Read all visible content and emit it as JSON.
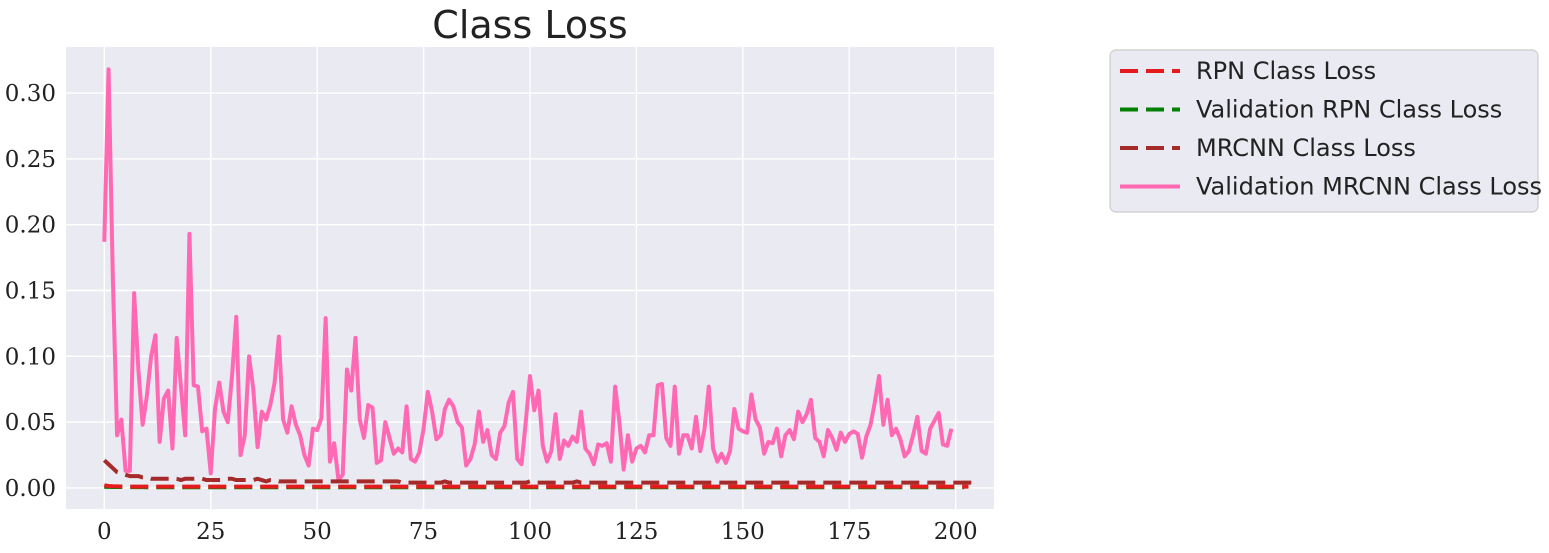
{
  "chart_data": {
    "type": "line",
    "title": "Class Loss",
    "xlabel": "",
    "ylabel": "",
    "xlim": [
      -9,
      209
    ],
    "ylim": [
      -0.016,
      0.335
    ],
    "xticks": [
      0,
      25,
      50,
      75,
      100,
      125,
      150,
      175,
      200
    ],
    "yticks": [
      0.0,
      0.05,
      0.1,
      0.15,
      0.2,
      0.25,
      0.3
    ],
    "ytick_labels": [
      "0.00",
      "0.05",
      "0.10",
      "0.15",
      "0.20",
      "0.25",
      "0.30"
    ],
    "grid": true,
    "legend_position": "outside right, top",
    "background_color": "#eaeaf2",
    "series": [
      {
        "name": "RPN Class Loss",
        "color": "#e41a1c",
        "style": "dashed",
        "x_start": 0,
        "x_step": 1,
        "values": [
          0.002,
          0.0015,
          0.0013,
          0.0012,
          0.0011,
          0.0011,
          0.001,
          0.001,
          0.001,
          0.001,
          0.001,
          0.001,
          0.001,
          0.001,
          0.001,
          0.001,
          0.001,
          0.001,
          0.001,
          0.001,
          0.001,
          0.001,
          0.001,
          0.001,
          0.001,
          0.001,
          0.001,
          0.001,
          0.001,
          0.001,
          0.001,
          0.001,
          0.001,
          0.001,
          0.001,
          0.001,
          0.001,
          0.001,
          0.001,
          0.001,
          0.001,
          0.001,
          0.001,
          0.001,
          0.001,
          0.001,
          0.001,
          0.001,
          0.001,
          0.001,
          0.001,
          0.001,
          0.001,
          0.001,
          0.001,
          0.001,
          0.001,
          0.001,
          0.001,
          0.001,
          0.001,
          0.001,
          0.001,
          0.001,
          0.001,
          0.001,
          0.001,
          0.001,
          0.001,
          0.001,
          0.001,
          0.001,
          0.001,
          0.001,
          0.001,
          0.001,
          0.001,
          0.001,
          0.001,
          0.001,
          0.001,
          0.001,
          0.001,
          0.001,
          0.001,
          0.001,
          0.001,
          0.001,
          0.001,
          0.001,
          0.001,
          0.001,
          0.001,
          0.001,
          0.001,
          0.001,
          0.001,
          0.001,
          0.001,
          0.001,
          0.001,
          0.001,
          0.001,
          0.001,
          0.001,
          0.001,
          0.001,
          0.001,
          0.001,
          0.001,
          0.001,
          0.001,
          0.001,
          0.001,
          0.001,
          0.001,
          0.001,
          0.001,
          0.001,
          0.001,
          0.001,
          0.001,
          0.001,
          0.001,
          0.001,
          0.001,
          0.001,
          0.001,
          0.001,
          0.001,
          0.001,
          0.001,
          0.001,
          0.001,
          0.001,
          0.001,
          0.001,
          0.001,
          0.001,
          0.001,
          0.001,
          0.001,
          0.001,
          0.001,
          0.001,
          0.001,
          0.001,
          0.001,
          0.001,
          0.001,
          0.001,
          0.001,
          0.001,
          0.001,
          0.001,
          0.001,
          0.001,
          0.001,
          0.001,
          0.001,
          0.001,
          0.001,
          0.001,
          0.001,
          0.001,
          0.001,
          0.001,
          0.001,
          0.001,
          0.001,
          0.001,
          0.001,
          0.001,
          0.001,
          0.001,
          0.001,
          0.001,
          0.001,
          0.001,
          0.001,
          0.001,
          0.001,
          0.001,
          0.001,
          0.001,
          0.001,
          0.001,
          0.001,
          0.001,
          0.001,
          0.001,
          0.001,
          0.001,
          0.001,
          0.001,
          0.001,
          0.001,
          0.001,
          0.001,
          0.001,
          0.001,
          0.001,
          0.001,
          0.001
        ]
      },
      {
        "name": "Validation RPN Class Loss",
        "color": "#008000",
        "style": "dashed",
        "x_start": 0,
        "x_step": 1,
        "values": [
          0.0008,
          0.0008,
          0.0007,
          0.0007,
          0.0007,
          0.0006,
          0.0006,
          0.0006,
          0.0006,
          0.0006,
          0.0005,
          0.0005,
          0.0005,
          0.0005,
          0.0005,
          0.0005,
          0.0005,
          0.0005,
          0.0005,
          0.0005,
          0.0005,
          0.0005,
          0.0005,
          0.0005,
          0.0005,
          0.0005,
          0.0005,
          0.0005,
          0.0005,
          0.0005,
          0.0005,
          0.0005,
          0.0005,
          0.0005,
          0.0005,
          0.0005,
          0.0005,
          0.0005,
          0.0005,
          0.0005,
          0.0005,
          0.0005,
          0.0005,
          0.0005,
          0.0005,
          0.0005,
          0.0005,
          0.0005,
          0.0005,
          0.0005,
          0.0005,
          0.0005,
          0.0005,
          0.0005,
          0.0005,
          0.0005,
          0.0005,
          0.0005,
          0.0005,
          0.0005,
          0.0005,
          0.0005,
          0.0005,
          0.0005,
          0.0005,
          0.0005,
          0.0005,
          0.0005,
          0.0005,
          0.0005,
          0.0005,
          0.0005,
          0.0005,
          0.0005,
          0.0005,
          0.0005,
          0.0005,
          0.0005,
          0.0005,
          0.0005,
          0.0005,
          0.0005,
          0.0005,
          0.0005,
          0.0005,
          0.0005,
          0.0005,
          0.0005,
          0.0005,
          0.0005,
          0.0005,
          0.0005,
          0.0005,
          0.0005,
          0.0005,
          0.0005,
          0.0005,
          0.0005,
          0.0005,
          0.0005,
          0.0005,
          0.0005,
          0.0005,
          0.0005,
          0.0005,
          0.0005,
          0.0005,
          0.0005,
          0.0005,
          0.0005,
          0.0005,
          0.0005,
          0.0005,
          0.0005,
          0.0005,
          0.0005,
          0.0005,
          0.0005,
          0.0005,
          0.0005,
          0.0005,
          0.0005,
          0.0005,
          0.0005,
          0.0005,
          0.0005,
          0.0005,
          0.0005,
          0.0005,
          0.0005,
          0.0005,
          0.0005,
          0.0005,
          0.0005,
          0.0005,
          0.0005,
          0.0005,
          0.0005,
          0.0005,
          0.0005,
          0.0005,
          0.0005,
          0.0005,
          0.0005,
          0.0005,
          0.0005,
          0.0005,
          0.0005,
          0.0005,
          0.0005,
          0.0005,
          0.0005,
          0.0005,
          0.0005,
          0.0005,
          0.0005,
          0.0005,
          0.0005,
          0.0005,
          0.0005,
          0.0005,
          0.0005,
          0.0005,
          0.0005,
          0.0005,
          0.0005,
          0.0005,
          0.0005,
          0.0005,
          0.0005,
          0.0005,
          0.0005,
          0.0005,
          0.0005,
          0.0005,
          0.0005,
          0.0005,
          0.0005,
          0.0005,
          0.0005,
          0.0005,
          0.0005,
          0.0005,
          0.0005,
          0.0005,
          0.0005,
          0.0005,
          0.0005,
          0.0005,
          0.0005,
          0.0005,
          0.0005,
          0.0005,
          0.0005,
          0.0005,
          0.0005,
          0.0005,
          0.0005,
          0.0005,
          0.0005,
          0.0005,
          0.0005,
          0.0005
        ]
      },
      {
        "name": "MRCNN Class Loss",
        "color": "#a52a2a",
        "style": "dashed",
        "x_start": 0,
        "x_step": 1,
        "values": [
          0.021,
          0.018,
          0.015,
          0.012,
          0.011,
          0.01,
          0.009,
          0.009,
          0.009,
          0.008,
          0.008,
          0.007,
          0.007,
          0.007,
          0.007,
          0.007,
          0.007,
          0.007,
          0.006,
          0.007,
          0.007,
          0.007,
          0.007,
          0.007,
          0.006,
          0.006,
          0.006,
          0.006,
          0.006,
          0.007,
          0.007,
          0.006,
          0.006,
          0.006,
          0.006,
          0.006,
          0.007,
          0.006,
          0.005,
          0.006,
          0.006,
          0.005,
          0.005,
          0.005,
          0.005,
          0.005,
          0.005,
          0.005,
          0.005,
          0.005,
          0.005,
          0.005,
          0.005,
          0.005,
          0.005,
          0.005,
          0.005,
          0.005,
          0.005,
          0.005,
          0.005,
          0.005,
          0.005,
          0.005,
          0.005,
          0.005,
          0.005,
          0.005,
          0.005,
          0.005,
          0.004,
          0.004,
          0.004,
          0.004,
          0.004,
          0.004,
          0.004,
          0.004,
          0.004,
          0.004,
          0.005,
          0.004,
          0.004,
          0.004,
          0.004,
          0.004,
          0.004,
          0.004,
          0.004,
          0.004,
          0.004,
          0.004,
          0.004,
          0.004,
          0.004,
          0.004,
          0.004,
          0.004,
          0.004,
          0.004,
          0.005,
          0.004,
          0.004,
          0.004,
          0.004,
          0.004,
          0.004,
          0.004,
          0.004,
          0.004,
          0.004,
          0.005,
          0.004,
          0.004,
          0.004,
          0.004,
          0.004,
          0.004,
          0.004,
          0.004,
          0.004,
          0.004,
          0.004,
          0.004,
          0.004,
          0.004,
          0.004,
          0.004,
          0.004,
          0.004,
          0.004,
          0.004,
          0.004,
          0.004,
          0.004,
          0.004,
          0.004,
          0.004,
          0.004,
          0.004,
          0.004,
          0.004,
          0.004,
          0.004,
          0.004,
          0.004,
          0.004,
          0.004,
          0.004,
          0.004,
          0.004,
          0.004,
          0.004,
          0.004,
          0.004,
          0.004,
          0.004,
          0.004,
          0.004,
          0.004,
          0.004,
          0.004,
          0.004,
          0.004,
          0.004,
          0.004,
          0.004,
          0.004,
          0.004,
          0.004,
          0.004,
          0.004,
          0.004,
          0.004,
          0.004,
          0.004,
          0.004,
          0.004,
          0.004,
          0.004,
          0.004,
          0.004,
          0.004,
          0.004,
          0.004,
          0.004,
          0.004,
          0.004,
          0.004,
          0.004,
          0.004,
          0.004,
          0.004,
          0.004,
          0.004,
          0.004,
          0.004,
          0.004,
          0.004,
          0.004,
          0.004,
          0.004,
          0.004,
          0.004,
          0.004,
          0.004
        ]
      },
      {
        "name": "Validation MRCNN Class Loss",
        "color": "#ff69b4",
        "style": "solid",
        "x_start": 0,
        "x_step": 1,
        "values": [
          0.187,
          0.318,
          0.16,
          0.04,
          0.052,
          0.013,
          0.013,
          0.148,
          0.09,
          0.048,
          0.07,
          0.1,
          0.116,
          0.035,
          0.068,
          0.074,
          0.03,
          0.114,
          0.077,
          0.04,
          0.193,
          0.078,
          0.077,
          0.043,
          0.045,
          0.011,
          0.06,
          0.08,
          0.058,
          0.05,
          0.085,
          0.13,
          0.025,
          0.04,
          0.1,
          0.075,
          0.031,
          0.058,
          0.052,
          0.063,
          0.08,
          0.115,
          0.052,
          0.042,
          0.062,
          0.048,
          0.04,
          0.025,
          0.017,
          0.045,
          0.044,
          0.053,
          0.129,
          0.02,
          0.034,
          0.006,
          0.01,
          0.09,
          0.074,
          0.114,
          0.052,
          0.038,
          0.063,
          0.061,
          0.019,
          0.021,
          0.05,
          0.038,
          0.026,
          0.03,
          0.027,
          0.062,
          0.022,
          0.02,
          0.027,
          0.045,
          0.073,
          0.058,
          0.037,
          0.04,
          0.06,
          0.067,
          0.062,
          0.05,
          0.046,
          0.017,
          0.022,
          0.033,
          0.058,
          0.035,
          0.044,
          0.025,
          0.022,
          0.042,
          0.047,
          0.065,
          0.073,
          0.022,
          0.018,
          0.05,
          0.085,
          0.059,
          0.074,
          0.032,
          0.02,
          0.028,
          0.056,
          0.022,
          0.036,
          0.032,
          0.039,
          0.035,
          0.058,
          0.03,
          0.026,
          0.018,
          0.033,
          0.032,
          0.034,
          0.02,
          0.077,
          0.05,
          0.014,
          0.04,
          0.02,
          0.03,
          0.032,
          0.027,
          0.04,
          0.04,
          0.078,
          0.079,
          0.038,
          0.032,
          0.077,
          0.026,
          0.04,
          0.04,
          0.03,
          0.054,
          0.028,
          0.045,
          0.077,
          0.03,
          0.02,
          0.026,
          0.019,
          0.028,
          0.06,
          0.045,
          0.043,
          0.042,
          0.071,
          0.052,
          0.046,
          0.026,
          0.035,
          0.034,
          0.045,
          0.024,
          0.04,
          0.044,
          0.037,
          0.058,
          0.05,
          0.056,
          0.067,
          0.038,
          0.035,
          0.024,
          0.044,
          0.038,
          0.029,
          0.042,
          0.035,
          0.041,
          0.043,
          0.041,
          0.023,
          0.039,
          0.048,
          0.065,
          0.085,
          0.048,
          0.067,
          0.04,
          0.045,
          0.037,
          0.024,
          0.028,
          0.04,
          0.054,
          0.028,
          0.026,
          0.045,
          0.051,
          0.057,
          0.033,
          0.032,
          0.045
        ]
      }
    ]
  }
}
